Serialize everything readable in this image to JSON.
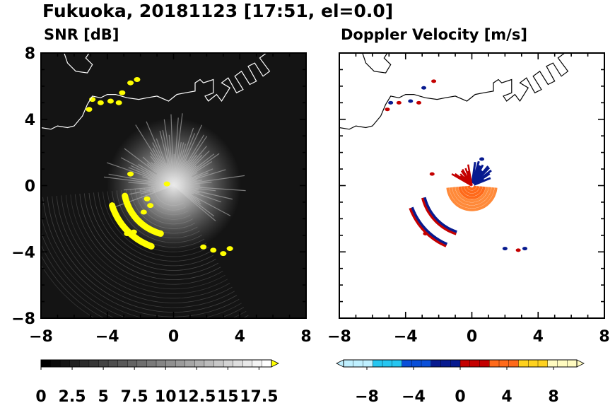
{
  "figure": {
    "title": "Fukuoka, 20181123 [17:51, el=0.0]"
  },
  "chart_data": [
    {
      "type": "heatmap",
      "title": "SNR [dB]",
      "xlabel": "",
      "ylabel": "",
      "xlim": [
        -8,
        8
      ],
      "ylim": [
        -8,
        8
      ],
      "x_ticks": [
        "−8",
        "−4",
        "0",
        "4",
        "8"
      ],
      "y_ticks": [
        "8",
        "4",
        "0",
        "−4",
        "−8"
      ],
      "colorbar": {
        "min": 0,
        "max": 18.5,
        "extend": "max",
        "tick_values": [
          0,
          2.5,
          5,
          7.5,
          10,
          12.5,
          15,
          17.5
        ],
        "tick_labels": [
          "0",
          "2.5",
          "5",
          "7.5",
          "10",
          "12.5",
          "15",
          "17.5"
        ],
        "colors": [
          "#000000",
          "#ffffff",
          "#ffff00"
        ]
      },
      "background_color": "#141414",
      "features": [
        {
          "name": "inner arc",
          "range_km": 3.0,
          "az_deg": [
            195,
            258
          ],
          "level": "high"
        },
        {
          "name": "outer arc",
          "range_km": 3.9,
          "az_deg": [
            200,
            252
          ],
          "level": "high"
        },
        {
          "name": "coast echo",
          "level": "high"
        }
      ]
    },
    {
      "type": "heatmap",
      "title": "Doppler Velocity [m/s]",
      "xlabel": "",
      "ylabel": "",
      "xlim": [
        -8,
        8
      ],
      "ylim": [
        -8,
        8
      ],
      "x_ticks": [
        "−8",
        "−4",
        "0",
        "4",
        "8"
      ],
      "y_ticks": [
        "8",
        "4",
        "0",
        "−4",
        "−8"
      ],
      "colorbar": {
        "min": -10,
        "max": 10,
        "extend": "both",
        "tick_values": [
          -8,
          -4,
          0,
          4,
          8
        ],
        "tick_labels": [
          "−8",
          "−4",
          "0",
          "4",
          "8"
        ],
        "colors": [
          "#bff0ff",
          "#26c6f0",
          "#0a4fd8",
          "#071a8f",
          "#c40000",
          "#ff6a1a",
          "#ffd21e",
          "#fffbc0"
        ]
      },
      "features": [
        {
          "name": "approaching sector",
          "az_deg": [
            5,
            70
          ],
          "velocity": "negative"
        },
        {
          "name": "receding near field",
          "az_deg": [
            90,
            270
          ],
          "velocity": "positive"
        }
      ]
    }
  ]
}
